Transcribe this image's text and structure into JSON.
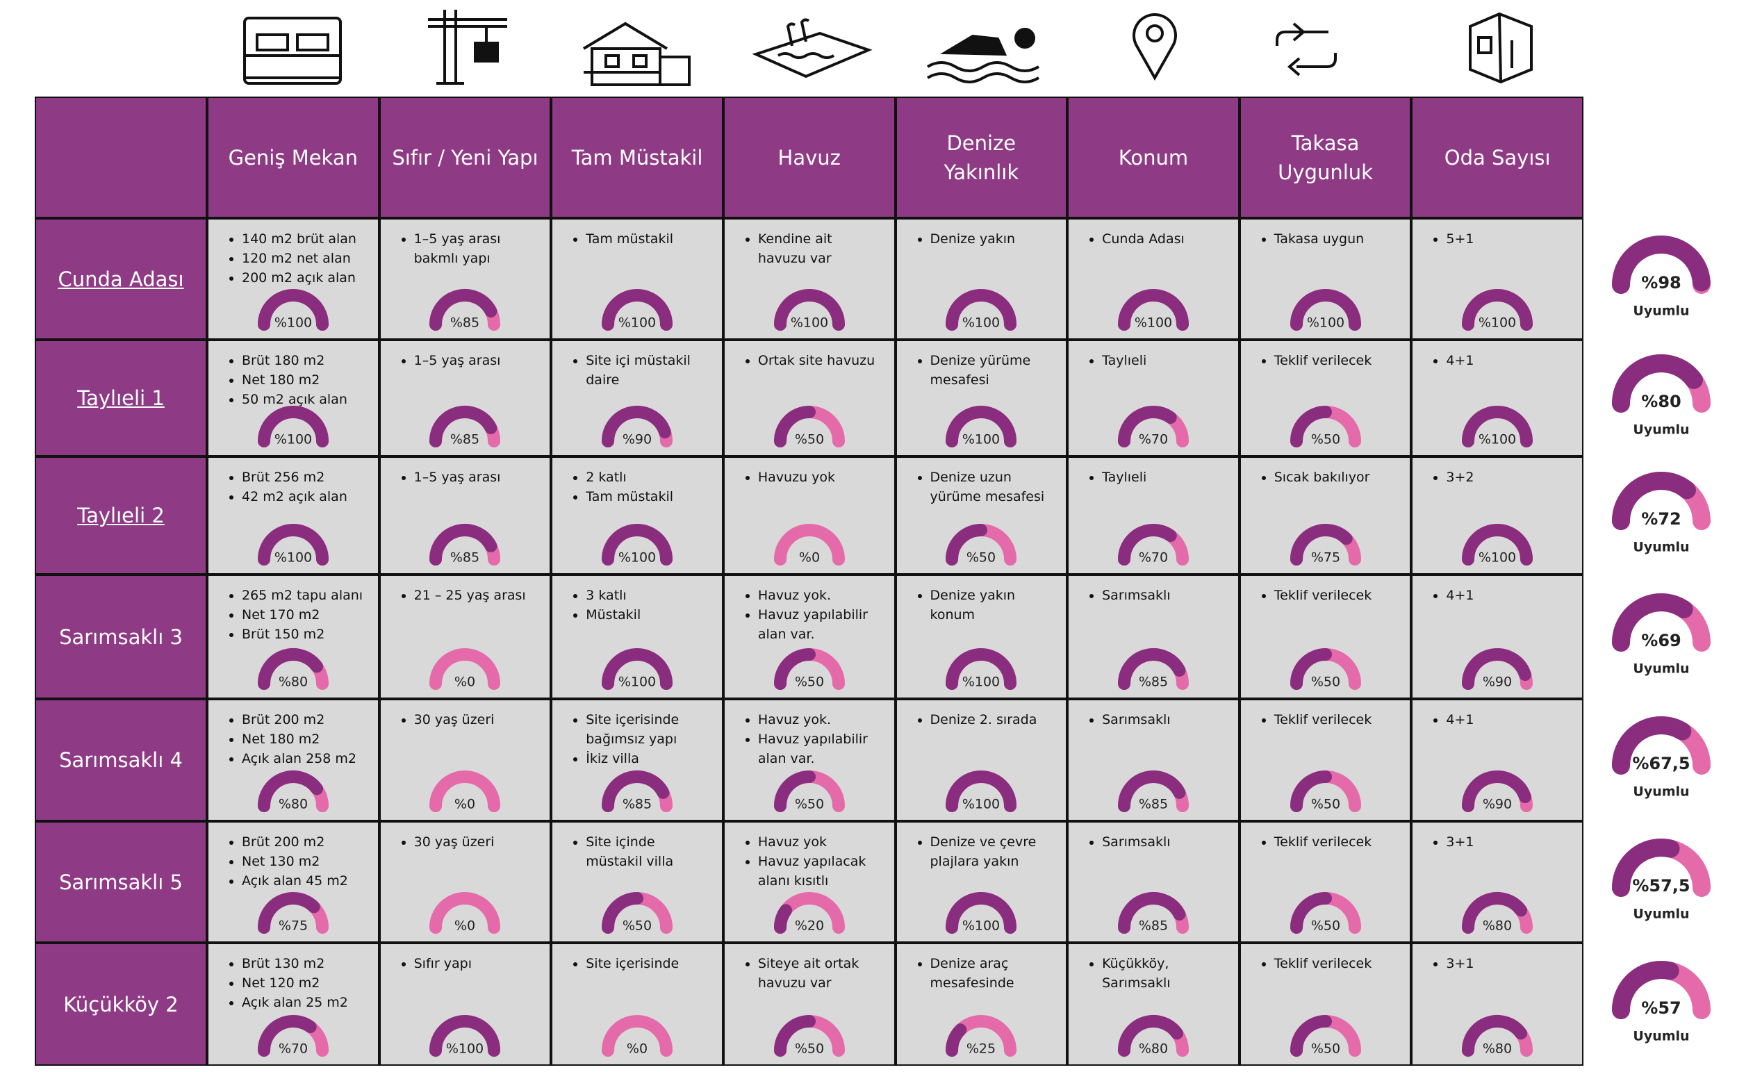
{
  "table": {
    "headers": [
      "Geniş Mekan",
      "Sıfır / Yeni Yapı",
      "Tam Müstakil",
      "Havuz",
      "Denize Yakınlık",
      "Konum",
      "Takasa Uygunluk",
      "Oda Sayısı"
    ],
    "rows": [
      {
        "name": "Cunda Adası",
        "cells": [
          {
            "items": [
              "140 m2 brüt alan",
              "120 m2 net alan",
              "200 m2 açık alan"
            ],
            "value": 100,
            "label": "%100"
          },
          {
            "items": [
              "1–5 yaş arası bakmlı yapı"
            ],
            "value": 85,
            "label": "%85"
          },
          {
            "items": [
              "Tam müstakil"
            ],
            "value": 100,
            "label": "%100"
          },
          {
            "items": [
              "Kendine ait havuzu var"
            ],
            "value": 100,
            "label": "%100"
          },
          {
            "items": [
              "Denize yakın"
            ],
            "value": 100,
            "label": "%100"
          },
          {
            "items": [
              "Cunda Adası"
            ],
            "value": 100,
            "label": "%100"
          },
          {
            "items": [
              "Takasa uygun"
            ],
            "value": 100,
            "label": "%100"
          },
          {
            "items": [
              "5+1"
            ],
            "value": 100,
            "label": "%100"
          }
        ],
        "overall": {
          "value": 98,
          "label": "%98",
          "caption": "Uyumlu"
        }
      },
      {
        "name": "Taylıeli 1",
        "cells": [
          {
            "items": [
              "Brüt 180 m2",
              "Net 180 m2",
              "50 m2 açık alan"
            ],
            "value": 100,
            "label": "%100"
          },
          {
            "items": [
              "1–5 yaş arası"
            ],
            "value": 85,
            "label": "%85"
          },
          {
            "items": [
              "Site içi müstakil daire"
            ],
            "value": 90,
            "label": "%90"
          },
          {
            "items": [
              "Ortak site havuzu"
            ],
            "value": 50,
            "label": "%50"
          },
          {
            "items": [
              "Denize yürüme mesafesi"
            ],
            "value": 100,
            "label": "%100"
          },
          {
            "items": [
              "Taylıeli"
            ],
            "value": 70,
            "label": "%70"
          },
          {
            "items": [
              "Teklif verilecek"
            ],
            "value": 50,
            "label": "%50"
          },
          {
            "items": [
              "4+1"
            ],
            "value": 100,
            "label": "%100"
          }
        ],
        "overall": {
          "value": 80,
          "label": "%80",
          "caption": "Uyumlu"
        }
      },
      {
        "name": "Taylıeli 2",
        "cells": [
          {
            "items": [
              "Brüt 256 m2",
              "42 m2 açık alan"
            ],
            "value": 100,
            "label": "%100"
          },
          {
            "items": [
              "1–5 yaş arası"
            ],
            "value": 85,
            "label": "%85"
          },
          {
            "items": [
              "2 katlı",
              "Tam müstakil"
            ],
            "value": 100,
            "label": "%100"
          },
          {
            "items": [
              "Havuzu yok"
            ],
            "value": 0,
            "label": "%0"
          },
          {
            "items": [
              "Denize uzun yürüme mesafesi"
            ],
            "value": 50,
            "label": "%50"
          },
          {
            "items": [
              "Taylıeli"
            ],
            "value": 70,
            "label": "%70"
          },
          {
            "items": [
              "Sıcak bakılıyor"
            ],
            "value": 75,
            "label": "%75"
          },
          {
            "items": [
              "3+2"
            ],
            "value": 100,
            "label": "%100"
          }
        ],
        "overall": {
          "value": 72,
          "label": "%72",
          "caption": "Uyumlu"
        }
      },
      {
        "name": "Sarımsaklı 3",
        "cells": [
          {
            "items": [
              "265 m2 tapu alanı",
              "Net 170 m2",
              "Brüt 150 m2"
            ],
            "value": 80,
            "label": "%80"
          },
          {
            "items": [
              "21 – 25 yaş arası"
            ],
            "value": 0,
            "label": "%0"
          },
          {
            "items": [
              "3 katlı",
              "Müstakil"
            ],
            "value": 100,
            "label": "%100"
          },
          {
            "items": [
              "Havuz yok.",
              "Havuz yapılabilir alan var."
            ],
            "value": 50,
            "label": "%50"
          },
          {
            "items": [
              "Denize yakın konum"
            ],
            "value": 100,
            "label": "%100"
          },
          {
            "items": [
              "Sarımsaklı"
            ],
            "value": 85,
            "label": "%85"
          },
          {
            "items": [
              "Teklif verilecek"
            ],
            "value": 50,
            "label": "%50"
          },
          {
            "items": [
              "4+1"
            ],
            "value": 90,
            "label": "%90"
          }
        ],
        "overall": {
          "value": 69,
          "label": "%69",
          "caption": "Uyumlu"
        }
      },
      {
        "name": "Sarımsaklı 4",
        "cells": [
          {
            "items": [
              "Brüt 200 m2",
              "Net 180 m2",
              "Açık alan 258 m2"
            ],
            "value": 80,
            "label": "%80"
          },
          {
            "items": [
              "30 yaş üzeri"
            ],
            "value": 0,
            "label": "%0"
          },
          {
            "items": [
              "Site içerisinde bağımsız yapı",
              "İkiz villa"
            ],
            "value": 85,
            "label": "%85"
          },
          {
            "items": [
              "Havuz yok.",
              "Havuz yapılabilir alan var."
            ],
            "value": 50,
            "label": "%50"
          },
          {
            "items": [
              "Denize 2. sırada"
            ],
            "value": 100,
            "label": "%100"
          },
          {
            "items": [
              "Sarımsaklı"
            ],
            "value": 85,
            "label": "%85"
          },
          {
            "items": [
              "Teklif verilecek"
            ],
            "value": 50,
            "label": "%50"
          },
          {
            "items": [
              "4+1"
            ],
            "value": 90,
            "label": "%90"
          }
        ],
        "overall": {
          "value": 67.5,
          "label": "%67,5",
          "caption": "Uyumlu"
        }
      },
      {
        "name": "Sarımsaklı 5",
        "cells": [
          {
            "items": [
              "Brüt 200 m2",
              "Net 130 m2",
              "Açık alan 45 m2"
            ],
            "value": 75,
            "label": "%75"
          },
          {
            "items": [
              "30 yaş üzeri"
            ],
            "value": 0,
            "label": "%0"
          },
          {
            "items": [
              "Site içinde müstakil villa"
            ],
            "value": 50,
            "label": "%50"
          },
          {
            "items": [
              "Havuz yok",
              "Havuz yapılacak alanı kısıtlı"
            ],
            "value": 20,
            "label": "%20"
          },
          {
            "items": [
              "Denize ve çevre plajlara yakın"
            ],
            "value": 100,
            "label": "%100"
          },
          {
            "items": [
              "Sarımsaklı"
            ],
            "value": 85,
            "label": "%85"
          },
          {
            "items": [
              "Teklif verilecek"
            ],
            "value": 50,
            "label": "%50"
          },
          {
            "items": [
              "3+1"
            ],
            "value": 80,
            "label": "%80"
          }
        ],
        "overall": {
          "value": 57.5,
          "label": "%57,5",
          "caption": "Uyumlu"
        }
      },
      {
        "name": "Küçükköy 2",
        "cells": [
          {
            "items": [
              "Brüt 130 m2",
              "Net 120 m2",
              "Açık alan 25 m2"
            ],
            "value": 70,
            "label": "%70"
          },
          {
            "items": [
              "Sıfır yapı"
            ],
            "value": 100,
            "label": "%100"
          },
          {
            "items": [
              "Site içerisinde"
            ],
            "value": 0,
            "label": "%0"
          },
          {
            "items": [
              "Siteye ait ortak havuzu var"
            ],
            "value": 50,
            "label": "%50"
          },
          {
            "items": [
              "Denize araç mesafesinde"
            ],
            "value": 25,
            "label": "%25"
          },
          {
            "items": [
              "Küçükköy, Sarımsaklı"
            ],
            "value": 80,
            "label": "%80"
          },
          {
            "items": [
              "Teklif verilecek"
            ],
            "value": 50,
            "label": "%50"
          },
          {
            "items": [
              "3+1"
            ],
            "value": 80,
            "label": "%80"
          }
        ],
        "overall": {
          "value": 57,
          "label": "%57",
          "caption": "Uyumlu"
        }
      }
    ]
  }
}
